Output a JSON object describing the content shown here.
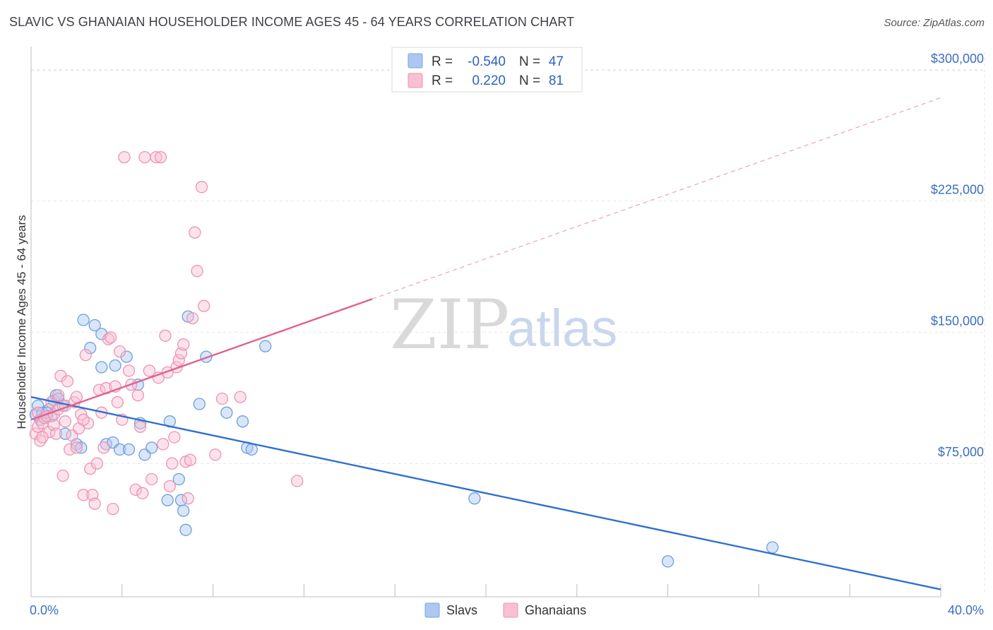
{
  "title": "SLAVIC VS GHANAIAN HOUSEHOLDER INCOME AGES 45 - 64 YEARS CORRELATION CHART",
  "source": "Source: ZipAtlas.com",
  "watermark": {
    "zip": "ZIP",
    "atlas": "atlas"
  },
  "legend": {
    "rows": [
      {
        "r_label": "R =",
        "r_value": "-0.540",
        "n_label": "N =",
        "n_value": "47",
        "color": "#aac8f0",
        "border": "#7aa6e0"
      },
      {
        "r_label": "R =",
        "r_value": "0.220",
        "n_label": "N =",
        "n_value": "81",
        "color": "#f8c0d2",
        "border": "#ee93b2"
      }
    ]
  },
  "bottom_legend": [
    {
      "label": "Slavs",
      "color": "#aac8f0",
      "border": "#7aa6e0"
    },
    {
      "label": "Ghanaians",
      "color": "#f8c0d2",
      "border": "#ee93b2"
    }
  ],
  "chart_data": {
    "type": "scatter",
    "title": "SLAVIC VS GHANAIAN HOUSEHOLDER INCOME AGES 45 - 64 YEARS CORRELATION CHART",
    "xlabel": "",
    "ylabel": "Householder Income Ages 45 - 64 years",
    "xlim": [
      0,
      40
    ],
    "ylim": [
      0,
      310000
    ],
    "x_tick_labels": [
      "0.0%",
      "40.0%"
    ],
    "y_ticks": [
      75000,
      150000,
      225000,
      300000
    ],
    "y_tick_labels": [
      "$75,000",
      "$150,000",
      "$225,000",
      "$300,000"
    ],
    "grid": true,
    "legend_position": "top-center",
    "series": [
      {
        "name": "Slavs",
        "color": "#6a9fe0",
        "trend": {
          "x": [
            0,
            40
          ],
          "y": [
            113000,
            3000
          ],
          "dashed_to": null
        },
        "points": [
          [
            0.2,
            103000
          ],
          [
            0.3,
            108000
          ],
          [
            0.4,
            100000
          ],
          [
            0.5,
            104000
          ],
          [
            0.6,
            101000
          ],
          [
            0.8,
            106000
          ],
          [
            0.9,
            102000
          ],
          [
            1.0,
            111000
          ],
          [
            1.1,
            114000
          ],
          [
            1.2,
            112000
          ],
          [
            1.4,
            108000
          ],
          [
            1.5,
            92000
          ],
          [
            2.0,
            86000
          ],
          [
            2.2,
            84000
          ],
          [
            2.3,
            157000
          ],
          [
            2.6,
            141000
          ],
          [
            2.8,
            154000
          ],
          [
            3.1,
            149000
          ],
          [
            3.1,
            130000
          ],
          [
            3.3,
            86000
          ],
          [
            3.6,
            87000
          ],
          [
            3.7,
            131000
          ],
          [
            3.9,
            83000
          ],
          [
            4.2,
            136000
          ],
          [
            4.3,
            83000
          ],
          [
            4.7,
            120000
          ],
          [
            4.8,
            98000
          ],
          [
            5.0,
            80000
          ],
          [
            5.3,
            84000
          ],
          [
            6.0,
            54000
          ],
          [
            6.1,
            99000
          ],
          [
            6.5,
            66000
          ],
          [
            6.6,
            54000
          ],
          [
            6.7,
            48000
          ],
          [
            6.8,
            37000
          ],
          [
            6.9,
            159000
          ],
          [
            7.4,
            109000
          ],
          [
            7.7,
            136000
          ],
          [
            8.6,
            104000
          ],
          [
            9.3,
            99000
          ],
          [
            9.5,
            84000
          ],
          [
            9.7,
            83000
          ],
          [
            10.3,
            142000
          ],
          [
            19.5,
            55000
          ],
          [
            28.0,
            19000
          ],
          [
            32.6,
            27000
          ],
          [
            0.7,
            104000
          ]
        ]
      },
      {
        "name": "Ghanaians",
        "color": "#ee93b2",
        "trend": {
          "x": [
            0,
            15
          ],
          "y": [
            100000,
            169000
          ],
          "dashed_to": [
            40,
            284000
          ]
        },
        "points": [
          [
            0.2,
            92000
          ],
          [
            0.3,
            96000
          ],
          [
            0.3,
            104000
          ],
          [
            0.4,
            88000
          ],
          [
            0.5,
            98000
          ],
          [
            0.6,
            101000
          ],
          [
            0.7,
            102000
          ],
          [
            0.8,
            93000
          ],
          [
            0.9,
            110000
          ],
          [
            1.0,
            97000
          ],
          [
            1.0,
            103000
          ],
          [
            1.1,
            92000
          ],
          [
            1.2,
            106000
          ],
          [
            1.2,
            114000
          ],
          [
            1.3,
            125000
          ],
          [
            1.4,
            68000
          ],
          [
            1.5,
            99000
          ],
          [
            1.5,
            108000
          ],
          [
            1.6,
            122000
          ],
          [
            1.7,
            83000
          ],
          [
            1.8,
            91000
          ],
          [
            1.9,
            110000
          ],
          [
            2.0,
            84000
          ],
          [
            2.0,
            113000
          ],
          [
            2.1,
            95000
          ],
          [
            2.2,
            103000
          ],
          [
            2.3,
            57000
          ],
          [
            2.4,
            137000
          ],
          [
            2.5,
            98000
          ],
          [
            2.6,
            72000
          ],
          [
            2.7,
            57000
          ],
          [
            2.8,
            52000
          ],
          [
            2.9,
            75000
          ],
          [
            3.0,
            117000
          ],
          [
            3.1,
            104000
          ],
          [
            3.2,
            84000
          ],
          [
            3.3,
            118000
          ],
          [
            3.4,
            146000
          ],
          [
            3.5,
            147000
          ],
          [
            3.6,
            49000
          ],
          [
            3.7,
            119000
          ],
          [
            3.9,
            139000
          ],
          [
            4.0,
            100000
          ],
          [
            4.1,
            250000
          ],
          [
            4.3,
            128000
          ],
          [
            4.4,
            120000
          ],
          [
            4.6,
            60000
          ],
          [
            4.7,
            114000
          ],
          [
            4.8,
            96000
          ],
          [
            4.9,
            58000
          ],
          [
            5.0,
            250000
          ],
          [
            5.2,
            128000
          ],
          [
            5.3,
            66000
          ],
          [
            5.5,
            250000
          ],
          [
            5.6,
            124000
          ],
          [
            5.7,
            250000
          ],
          [
            5.8,
            86000
          ],
          [
            5.9,
            148000
          ],
          [
            6.0,
            127000
          ],
          [
            6.1,
            62000
          ],
          [
            6.2,
            75000
          ],
          [
            6.3,
            90000
          ],
          [
            6.4,
            130000
          ],
          [
            6.5,
            134000
          ],
          [
            6.6,
            138000
          ],
          [
            6.7,
            143000
          ],
          [
            6.8,
            76000
          ],
          [
            6.9,
            55000
          ],
          [
            7.0,
            77000
          ],
          [
            7.1,
            158000
          ],
          [
            7.2,
            207000
          ],
          [
            7.3,
            185000
          ],
          [
            7.5,
            233000
          ],
          [
            7.6,
            165000
          ],
          [
            8.1,
            80000
          ],
          [
            8.4,
            112000
          ],
          [
            9.2,
            113000
          ],
          [
            11.7,
            65000
          ],
          [
            0.5,
            90000
          ],
          [
            2.3,
            100000
          ],
          [
            3.8,
            110000
          ]
        ]
      }
    ]
  }
}
